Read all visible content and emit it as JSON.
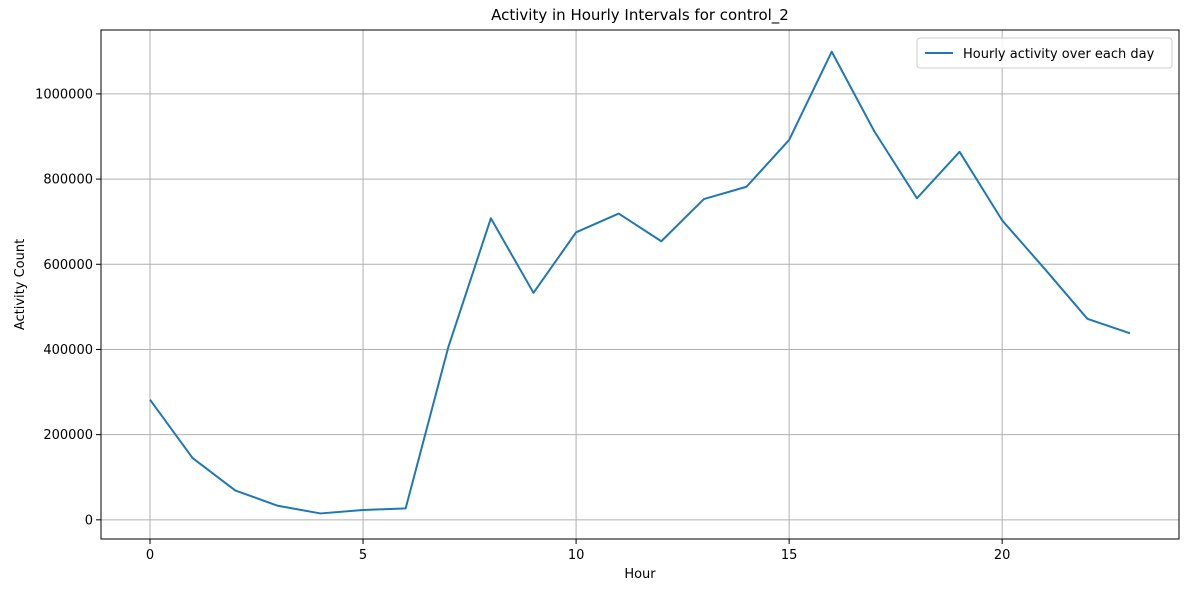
{
  "chart_data": {
    "type": "line",
    "title": "Activity in Hourly Intervals for control_2",
    "xlabel": "Hour",
    "ylabel": "Activity Count",
    "xlim": [
      -1.15,
      24.15
    ],
    "ylim": [
      -45000,
      1150000
    ],
    "xticks": [
      0,
      5,
      10,
      15,
      20
    ],
    "xtick_labels": [
      "0",
      "5",
      "10",
      "15",
      "20"
    ],
    "yticks": [
      0,
      200000,
      400000,
      600000,
      800000,
      1000000
    ],
    "ytick_labels": [
      "0",
      "200000",
      "400000",
      "600000",
      "800000",
      "1000000"
    ],
    "grid": true,
    "legend_position": "top-right",
    "series": [
      {
        "name": "Hourly activity over each day",
        "color": "#1f77b4",
        "x": [
          0,
          1,
          2,
          3,
          4,
          5,
          6,
          7,
          8,
          9,
          10,
          11,
          12,
          13,
          14,
          15,
          16,
          17,
          18,
          19,
          20,
          21,
          22,
          23
        ],
        "y": [
          282000,
          145000,
          69000,
          33000,
          15000,
          23000,
          27000,
          405000,
          708000,
          533000,
          675000,
          719000,
          654000,
          753000,
          782000,
          892000,
          1099000,
          912000,
          755000,
          864000,
          703000,
          589000,
          472000,
          438000
        ]
      }
    ]
  }
}
